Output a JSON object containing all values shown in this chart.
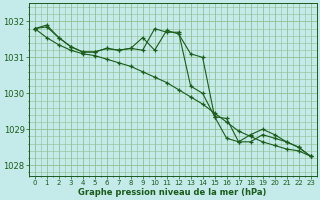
{
  "background_color": "#c5eaea",
  "grid_color": "#90c090",
  "line_color": "#1a5c1a",
  "marker_color": "#1a5c1a",
  "xlabel": "Graphe pression niveau de la mer (hPa)",
  "xlabel_color": "#1a5c1a",
  "ylim": [
    1027.7,
    1032.5
  ],
  "xlim": [
    -0.5,
    23.5
  ],
  "yticks": [
    1028,
    1029,
    1030,
    1031,
    1032
  ],
  "xtick_labels": [
    "0",
    "1",
    "2",
    "3",
    "4",
    "5",
    "6",
    "7",
    "8",
    "9",
    "10",
    "11",
    "12",
    "13",
    "14",
    "15",
    "16",
    "17",
    "18",
    "19",
    "20",
    "21",
    "22",
    "23"
  ],
  "series1_x": [
    0,
    1,
    2,
    3,
    4,
    5,
    6,
    7,
    8,
    9,
    10,
    11,
    12,
    13,
    14,
    15,
    16,
    17,
    18,
    19,
    20,
    21,
    22,
    23
  ],
  "series1_y": [
    1031.8,
    1031.85,
    1031.55,
    1031.3,
    1031.15,
    1031.15,
    1031.25,
    1031.2,
    1031.25,
    1031.2,
    1031.8,
    1031.7,
    1031.7,
    1030.2,
    1030.0,
    1029.35,
    1028.75,
    1028.65,
    1028.85,
    1029.0,
    1028.85,
    1028.65,
    1028.5,
    1028.25
  ],
  "series2_x": [
    0,
    1,
    2,
    3,
    4,
    5,
    6,
    7,
    8,
    9,
    10,
    11,
    12,
    13,
    14,
    15,
    16,
    17,
    18,
    19,
    20,
    21,
    22,
    23
  ],
  "series2_y": [
    1031.8,
    1031.55,
    1031.35,
    1031.2,
    1031.1,
    1031.05,
    1030.95,
    1030.85,
    1030.75,
    1030.6,
    1030.45,
    1030.3,
    1030.1,
    1029.9,
    1029.7,
    1029.45,
    1029.2,
    1028.95,
    1028.8,
    1028.65,
    1028.55,
    1028.45,
    1028.4,
    1028.25
  ],
  "series3_x": [
    0,
    1,
    2,
    3,
    4,
    5,
    6,
    7,
    8,
    9,
    10,
    11,
    12,
    13,
    14,
    15,
    16,
    17,
    18,
    19,
    20,
    21,
    22,
    23
  ],
  "series3_y": [
    1031.8,
    1031.9,
    1031.55,
    1031.3,
    1031.15,
    1031.15,
    1031.25,
    1031.2,
    1031.25,
    1031.55,
    1031.2,
    1031.75,
    1031.65,
    1031.1,
    1031.0,
    1029.35,
    1029.3,
    1028.65,
    1028.65,
    1028.85,
    1028.75,
    1028.65,
    1028.5,
    1028.25
  ]
}
